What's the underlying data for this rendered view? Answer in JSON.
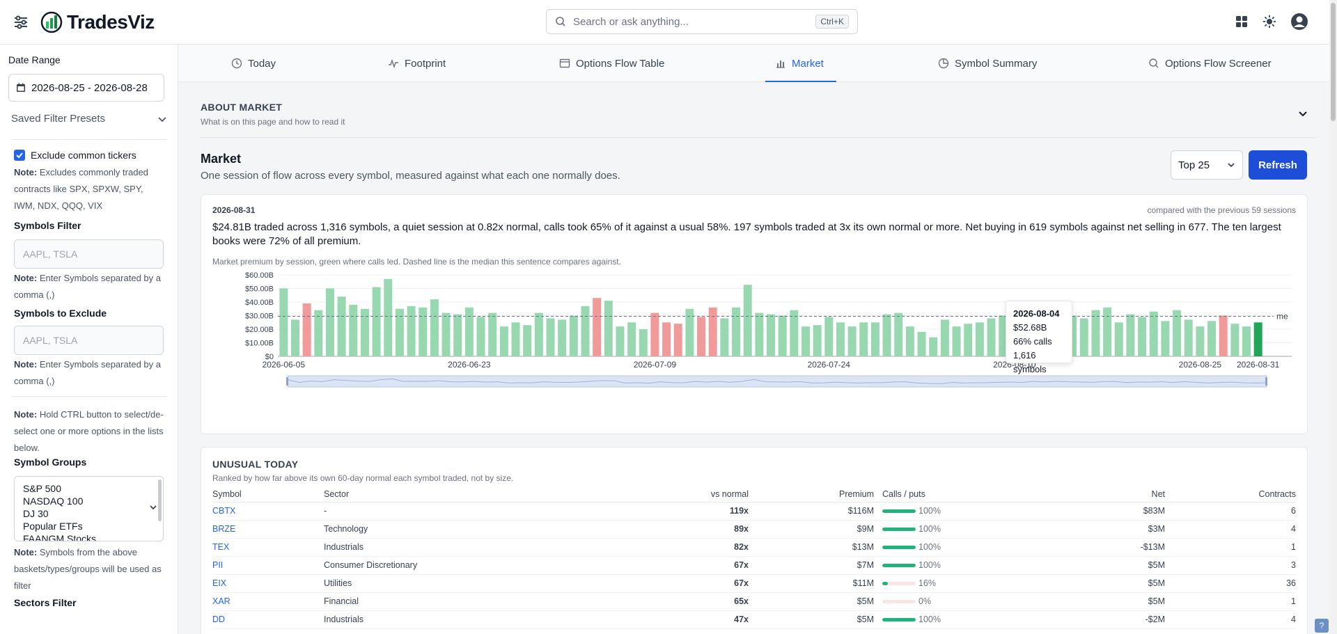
{
  "app": {
    "name": "TradesViz"
  },
  "search": {
    "placeholder": "Search or ask anything...",
    "shortcut": "Ctrl+K"
  },
  "sidebar": {
    "date_range_label": "Date Range",
    "date_range_value": "2026-08-25 - 2026-08-28",
    "saved_presets": "Saved Filter Presets",
    "exclude_common_label": "Exclude common tickers",
    "exclude_common_note_bold": "Note:",
    "exclude_common_note": " Excludes commonly traded contracts like SPX, SPXW, SPY, IWM, NDX, QQQ, VIX",
    "symbols_filter_label": "Symbols Filter",
    "symbols_filter_placeholder": "AAPL, TSLA",
    "symbols_note_bold": "Note:",
    "symbols_note": " Enter Symbols separated by a comma (,)",
    "symbols_exclude_label": "Symbols to Exclude",
    "symbols_exclude_placeholder": "AAPL, TSLA",
    "exclude_note_bold": "Note:",
    "exclude_note": " Enter Symbols separated by a comma (,)",
    "ctrl_note_bold": "Note:",
    "ctrl_note": " Hold CTRL button to select/de-select one or more options in the lists below.",
    "symbol_groups_label": "Symbol Groups",
    "symbol_groups": [
      "S&P 500",
      "NASDAQ 100",
      "DJ 30",
      "Popular ETFs",
      "FAANGM Stocks"
    ],
    "groups_note_bold": "Note:",
    "groups_note": " Symbols from the above baskets/types/groups will be used as filter",
    "sectors_filter_label": "Sectors Filter"
  },
  "tabs": [
    {
      "label": "Today",
      "icon": "clock-icon"
    },
    {
      "label": "Footprint",
      "icon": "activity-icon"
    },
    {
      "label": "Options Flow Table",
      "icon": "table-icon"
    },
    {
      "label": "Market",
      "icon": "bar-chart-icon",
      "active": true
    },
    {
      "label": "Symbol Summary",
      "icon": "pie-chart-icon"
    },
    {
      "label": "Options Flow Screener",
      "icon": "search-icon"
    }
  ],
  "about": {
    "title": "ABOUT MARKET",
    "subtitle": "What is on this page and how to read it"
  },
  "market": {
    "title": "Market",
    "subtitle": "One session of flow across every symbol, measured against what each one normally does.",
    "top_select": "Top 25",
    "refresh_label": "Refresh"
  },
  "session": {
    "date": "2026-08-31",
    "compared": "compared with the previous 59 sessions",
    "summary": "$24.81B traded across 1,316 symbols, a quiet session at 0.82x normal, calls took 65% of it against a usual 58%. 197 symbols traded at 3x its own normal or more. Net buying in 619 symbols against net selling in 677. The ten largest books were 72% of all premium.",
    "chart_caption": "Market premium by session, green where calls led. Dashed line is the median this sentence compares against."
  },
  "tooltip": {
    "date": "2026-08-04",
    "premium": "$52.68B",
    "calls": "66% calls",
    "symbols": "1,616 symbols"
  },
  "chart_data": {
    "type": "bar",
    "unit": "USD billions",
    "y_ticks": [
      "$0",
      "$10.00B",
      "$20.00B",
      "$30.00B",
      "$40.00B",
      "$50.00B",
      "$60.00B"
    ],
    "ylim": [
      0,
      60
    ],
    "x_tick_labels": [
      "2026-06-05",
      "2026-06-23",
      "2026-07-09",
      "2026-07-24",
      "2026-08-10",
      "2026-08-25",
      "2026-08-31"
    ],
    "x_tick_index": [
      0,
      16,
      32,
      47,
      63,
      79,
      84
    ],
    "median": 29.5,
    "median_label": "me",
    "values": [
      50,
      27,
      39,
      34,
      50,
      44,
      38,
      35,
      51,
      57,
      35,
      37,
      36,
      42,
      32,
      31,
      36,
      29,
      32,
      22,
      25,
      23,
      32,
      28,
      27,
      30,
      37,
      43,
      41,
      22,
      25,
      20,
      32,
      25,
      24,
      35,
      29,
      36,
      28,
      36,
      52.68,
      32,
      31,
      30,
      34,
      22,
      23,
      29,
      25,
      22,
      25,
      25,
      31,
      32,
      22,
      18,
      14,
      27,
      22,
      24,
      25,
      28,
      30,
      26,
      36,
      31,
      37,
      32,
      30,
      28,
      34,
      36,
      25,
      31,
      29,
      33,
      26,
      34,
      27,
      22,
      26,
      30,
      24,
      22,
      25
    ],
    "call_led": [
      true,
      true,
      false,
      true,
      true,
      true,
      true,
      true,
      true,
      true,
      true,
      true,
      true,
      true,
      true,
      true,
      true,
      true,
      true,
      true,
      true,
      true,
      true,
      true,
      true,
      true,
      true,
      false,
      true,
      true,
      true,
      true,
      false,
      false,
      false,
      true,
      false,
      false,
      true,
      true,
      true,
      true,
      true,
      true,
      true,
      true,
      true,
      true,
      true,
      true,
      true,
      true,
      true,
      true,
      true,
      true,
      true,
      true,
      true,
      true,
      true,
      true,
      true,
      true,
      true,
      true,
      true,
      true,
      true,
      true,
      true,
      true,
      true,
      true,
      true,
      true,
      true,
      true,
      true,
      true,
      true,
      false,
      true,
      true,
      true
    ],
    "highlight_last": true
  },
  "unusual": {
    "title": "UNUSUAL TODAY",
    "subtitle": "Ranked by how far above its own 60-day normal each symbol traded, not by size.",
    "columns": {
      "symbol": "Symbol",
      "sector": "Sector",
      "vs_normal": "vs normal",
      "premium": "Premium",
      "calls_puts": "Calls / puts",
      "net": "Net",
      "contracts": "Contracts"
    },
    "rows": [
      {
        "symbol": "CBTX",
        "sector": "-",
        "vs_normal": "119x",
        "premium": "$116M",
        "calls_pct": 100,
        "calls_label": "100%",
        "net": "$83M",
        "net_positive": true,
        "contracts": "6"
      },
      {
        "symbol": "BRZE",
        "sector": "Technology",
        "vs_normal": "89x",
        "premium": "$9M",
        "calls_pct": 100,
        "calls_label": "100%",
        "net": "$3M",
        "net_positive": true,
        "contracts": "4"
      },
      {
        "symbol": "TEX",
        "sector": "Industrials",
        "vs_normal": "82x",
        "premium": "$13M",
        "calls_pct": 100,
        "calls_label": "100%",
        "net": "-$13M",
        "net_positive": false,
        "contracts": "1"
      },
      {
        "symbol": "PII",
        "sector": "Consumer Discretionary",
        "vs_normal": "67x",
        "premium": "$7M",
        "calls_pct": 100,
        "calls_label": "100%",
        "net": "$5M",
        "net_positive": true,
        "contracts": "3"
      },
      {
        "symbol": "EIX",
        "sector": "Utilities",
        "vs_normal": "67x",
        "premium": "$11M",
        "calls_pct": 16,
        "calls_label": "16%",
        "net": "$5M",
        "net_positive": true,
        "contracts": "36"
      },
      {
        "symbol": "XAR",
        "sector": "Financial",
        "vs_normal": "65x",
        "premium": "$5M",
        "calls_pct": 0,
        "calls_label": "0%",
        "net": "$5M",
        "net_positive": true,
        "contracts": "1"
      },
      {
        "symbol": "DD",
        "sector": "Industrials",
        "vs_normal": "47x",
        "premium": "$5M",
        "calls_pct": 100,
        "calls_label": "100%",
        "net": "-$2M",
        "net_positive": false,
        "contracts": "4"
      }
    ]
  },
  "help_label": "?"
}
